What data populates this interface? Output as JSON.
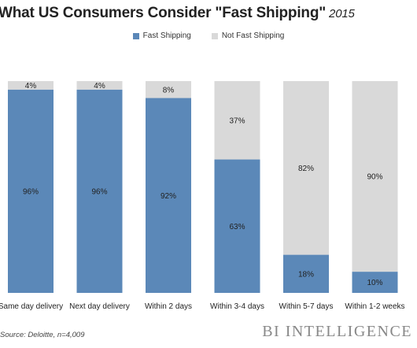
{
  "chart_data": {
    "type": "bar",
    "stacked": true,
    "title": "What US Consumers Consider \"Fast Shipping\"",
    "title_year": "2015",
    "categories": [
      "Same day delivery",
      "Next day delivery",
      "Within 2 days",
      "Within 3-4 days",
      "Within 5-7 days",
      "Within 1-2 weeks"
    ],
    "series": [
      {
        "name": "Fast Shipping",
        "values": [
          96,
          96,
          92,
          63,
          18,
          10
        ],
        "labels": [
          "96%",
          "96%",
          "92%",
          "63%",
          "18%",
          "10%"
        ],
        "color": "#5b88b8"
      },
      {
        "name": "Not Fast Shipping",
        "values": [
          4,
          4,
          8,
          37,
          82,
          90
        ],
        "labels": [
          "4%",
          "4%",
          "8%",
          "37%",
          "82%",
          "90%"
        ],
        "color": "#d9d9d9"
      }
    ],
    "ylim": [
      0,
      100
    ],
    "grid": false,
    "legend_position": "top-center",
    "source": "Source: Deloitte, n=4,009",
    "brand": "BI INTELLIGENCE"
  }
}
